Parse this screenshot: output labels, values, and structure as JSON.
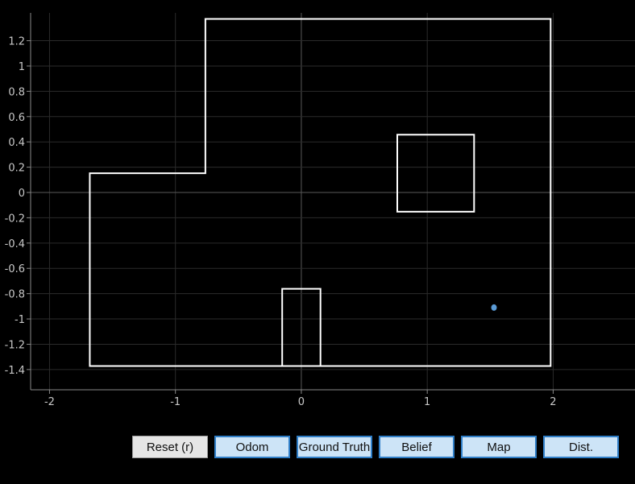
{
  "plot": {
    "background": "#000000",
    "grid_color": "#2b2b2b",
    "axis_color": "#8a8a8a",
    "x_ticks": [
      -2,
      -1,
      0,
      1,
      2
    ],
    "x_tick_labels": [
      "-2",
      "-1",
      "0",
      "1",
      "2"
    ],
    "y_ticks": [
      1.2,
      1,
      0.8,
      0.6,
      0.4,
      0.2,
      0,
      -0.2,
      -0.4,
      -0.6,
      -0.8,
      -1,
      -1.2,
      -1.4
    ],
    "y_tick_labels": [
      "1.2",
      "1",
      "0.8",
      "0.6",
      "0.4",
      "0.2",
      "0",
      "-0.2",
      "-0.4",
      "-0.6",
      "-0.8",
      "-1",
      "-1.2",
      "-1.4"
    ],
    "x_range": [
      -2.15,
      2.65
    ],
    "y_range": [
      -1.56,
      1.42
    ],
    "map_outer": [
      [
        -1.68,
        -1.372
      ],
      [
        -1.68,
        0.152
      ],
      [
        -0.762,
        0.152
      ],
      [
        -0.762,
        1.372
      ],
      [
        1.98,
        1.372
      ],
      [
        1.98,
        -1.372
      ]
    ],
    "obstacles": [
      [
        [
          0.762,
          -0.152
        ],
        [
          1.372,
          -0.152
        ],
        [
          1.372,
          0.457
        ],
        [
          0.762,
          0.457
        ]
      ],
      [
        [
          -0.152,
          -1.372
        ],
        [
          -0.152,
          -0.762
        ],
        [
          0.152,
          -0.762
        ],
        [
          0.152,
          -1.372
        ]
      ]
    ],
    "robot": {
      "x": 1.53,
      "y": -0.91,
      "color": "#5b9bd5"
    }
  },
  "buttons": {
    "reset": "Reset (r)",
    "odom": "Odom",
    "ground_truth": "Ground Truth",
    "belief": "Belief",
    "map": "Map",
    "dist": "Dist."
  }
}
